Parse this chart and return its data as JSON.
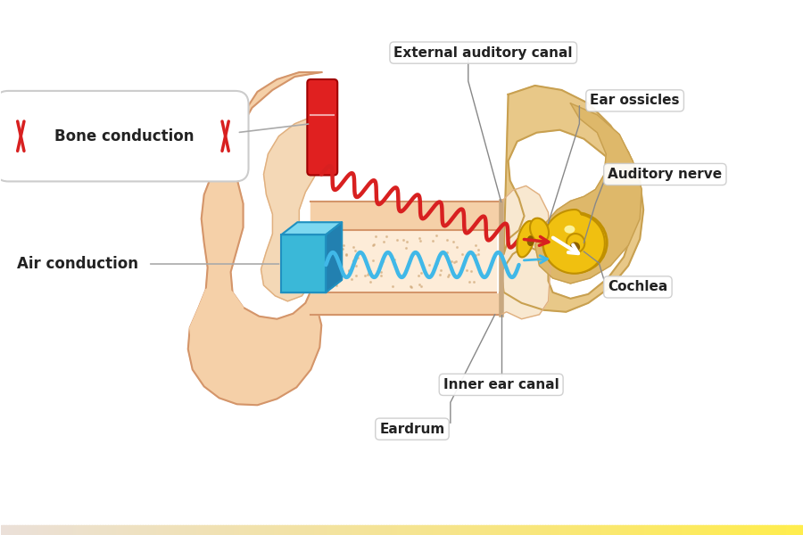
{
  "bg_color": "#ffffff",
  "ear_fill": "#f5d0a8",
  "ear_fill2": "#f0c898",
  "ear_inner": "#fce8d0",
  "ear_stroke": "#d4956a",
  "ear_stroke_light": "#e0b080",
  "cochlea_fill": "#f0c010",
  "cochlea_stroke": "#c09000",
  "cochlea_dark": "#8b5e00",
  "temporal_fill": "#e8c888",
  "temporal_stroke": "#c8a050",
  "blue_box_color": "#3ab8d8",
  "blue_box_top": "#7dd8f0",
  "blue_box_side": "#2090c0",
  "red_device_color": "#e02020",
  "red_device_stroke": "#a00000",
  "red_wave_color": "#d82020",
  "blue_wave_color": "#40b8e8",
  "white_arrow_color": "#ffffff",
  "label_color": "#222222",
  "line_color": "#888888",
  "bone_label": "Bone conduction",
  "air_label": "Air conduction",
  "external_auditory_canal": "External auditory canal",
  "ear_ossicles": "Ear ossicles",
  "auditory_nerve": "Auditory nerve",
  "cochlea": "Cochlea",
  "inner_ear_canal": "Inner ear canal",
  "eardrum": "Eardrum",
  "label_fontsize": 11,
  "annotation_fontsize": 12
}
